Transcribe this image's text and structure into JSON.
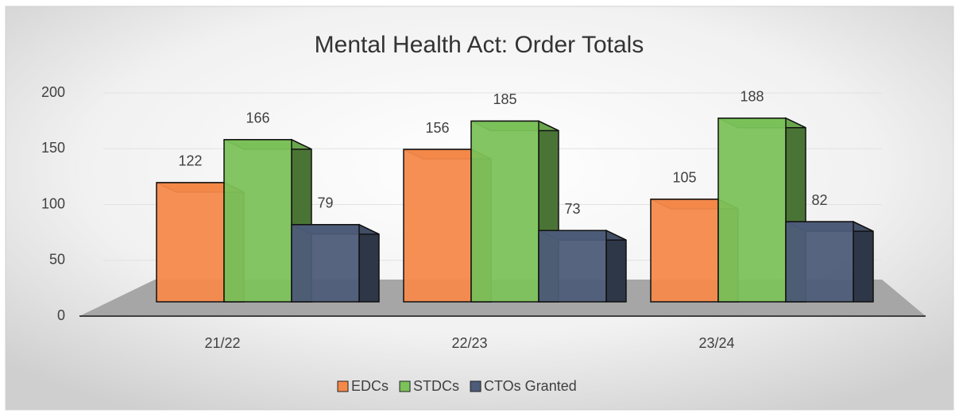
{
  "chart_data": {
    "type": "bar3d",
    "title": "Mental Health Act: Order Totals",
    "categories": [
      "21/22",
      "22/23",
      "23/24"
    ],
    "series": [
      {
        "name": "EDCs",
        "color": "#f4894a",
        "values": [
          122,
          156,
          105
        ]
      },
      {
        "name": "STDCs",
        "color": "#7cc25a",
        "values": [
          166,
          185,
          188
        ]
      },
      {
        "name": "CTOs Granted",
        "color": "#4d5c78",
        "values": [
          79,
          73,
          82
        ]
      }
    ],
    "ylim": [
      0,
      200
    ],
    "yticks": [
      0,
      50,
      100,
      150,
      200
    ],
    "grid": true,
    "legend": "bottom"
  }
}
